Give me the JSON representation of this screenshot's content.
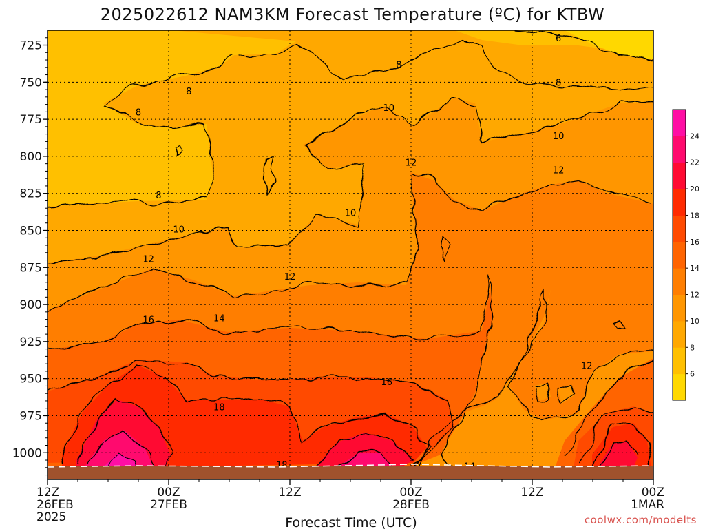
{
  "title": "2025022612 NAM3KM Forecast Temperature (ºC) for KTBW",
  "credit": "coolwx.com/modelts",
  "chart_data": {
    "type": "heatmap",
    "title": "2025022612 NAM3KM Forecast Temperature (ºC) for KTBW",
    "xlabel": "Forecast Time (UTC)",
    "ylabel": "",
    "units": "ºC",
    "x_ticks": [
      {
        "hours": 0,
        "lines": [
          "12Z",
          "26FEB",
          "2025"
        ]
      },
      {
        "hours": 12,
        "lines": [
          "00Z",
          "27FEB"
        ]
      },
      {
        "hours": 24,
        "lines": [
          "12Z"
        ]
      },
      {
        "hours": 36,
        "lines": [
          "00Z",
          "28FEB"
        ]
      },
      {
        "hours": 48,
        "lines": [
          "12Z"
        ]
      },
      {
        "hours": 60,
        "lines": [
          "00Z",
          "1MAR"
        ]
      }
    ],
    "y_ticks": [
      725,
      750,
      775,
      800,
      825,
      850,
      875,
      900,
      925,
      950,
      975,
      1000
    ],
    "xlim": [
      0,
      60
    ],
    "ylim": [
      715,
      1018
    ],
    "colorbar": {
      "levels": [
        6,
        8,
        10,
        12,
        14,
        16,
        18,
        20,
        22,
        24
      ],
      "colors": [
        "#ffd800",
        "#ffc000",
        "#ffa800",
        "#ff9600",
        "#ff7e00",
        "#ff6400",
        "#ff4a00",
        "#ff2a00",
        "#ff0a32",
        "#ff0a6e",
        "#ff0ea4"
      ]
    },
    "contour_labels": [
      {
        "value": "6",
        "hours": 50.6,
        "pressure": 720
      },
      {
        "value": "8",
        "hours": 14.0,
        "pressure": 756
      },
      {
        "value": "8",
        "hours": 9.0,
        "pressure": 770
      },
      {
        "value": "8",
        "hours": 34.8,
        "pressure": 738
      },
      {
        "value": "8",
        "hours": 50.6,
        "pressure": 750
      },
      {
        "value": "8",
        "hours": 11.0,
        "pressure": 826
      },
      {
        "value": "10",
        "hours": 33.8,
        "pressure": 767
      },
      {
        "value": "10",
        "hours": 50.6,
        "pressure": 786
      },
      {
        "value": "10",
        "hours": 30.0,
        "pressure": 838
      },
      {
        "value": "10",
        "hours": 13.0,
        "pressure": 849
      },
      {
        "value": "12",
        "hours": 36.0,
        "pressure": 804
      },
      {
        "value": "12",
        "hours": 50.6,
        "pressure": 809
      },
      {
        "value": "12",
        "hours": 10.0,
        "pressure": 869
      },
      {
        "value": "12",
        "hours": 24.0,
        "pressure": 881
      },
      {
        "value": "12",
        "hours": 53.4,
        "pressure": 941
      },
      {
        "value": "14",
        "hours": 17.0,
        "pressure": 909
      },
      {
        "value": "14",
        "hours": 41.8,
        "pressure": 1009
      },
      {
        "value": "16",
        "hours": 10.0,
        "pressure": 910
      },
      {
        "value": "16",
        "hours": 33.6,
        "pressure": 952
      },
      {
        "value": "18",
        "hours": 17.0,
        "pressure": 969
      },
      {
        "value": "18",
        "hours": 23.2,
        "pressure": 1008
      }
    ]
  }
}
